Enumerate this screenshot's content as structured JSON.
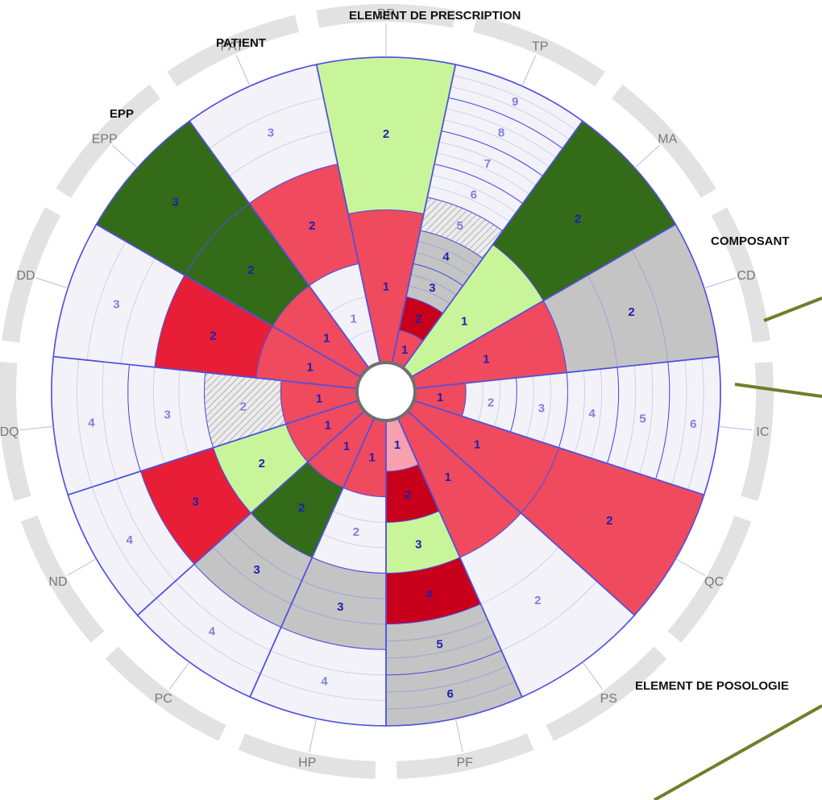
{
  "chart_data": {
    "type": "radial-stacked-segments",
    "title": "",
    "group_titles": [
      "ELEMENT DE PRESCRIPTION",
      "COMPOSANT",
      "ELEMENT DE POSOLOGIE",
      "PATIENT",
      "EPP"
    ],
    "colors": {
      "red": "#ef4a5e",
      "darkred": "#c8001c",
      "brightred": "#e81e36",
      "pink": "#f7a0ae",
      "lime": "#c9f59a",
      "darkgreen": "#336b19",
      "gray": "#c4c4c4",
      "empty": "#f2f2f8",
      "hatch": "#e6e6e6",
      "ring": "#e2e2e2",
      "line": "#5050e0",
      "label_dark": "#1f1fae",
      "label_light": "#8080e0",
      "axis_text": "#777777",
      "leader": "#6e7f2a"
    },
    "sectors": [
      {
        "code": "DP",
        "levels": [
          {
            "n": 1,
            "c": "red"
          },
          {
            "n": 2,
            "c": "lime"
          }
        ]
      },
      {
        "code": "TP",
        "levels": [
          {
            "n": 1,
            "c": "red"
          },
          {
            "n": 2,
            "c": "darkred"
          },
          {
            "n": 3,
            "c": "gray"
          },
          {
            "n": 4,
            "c": "gray"
          },
          {
            "n": 5,
            "c": "hatch"
          },
          {
            "n": 6,
            "c": "empty"
          },
          {
            "n": 7,
            "c": "empty"
          },
          {
            "n": 8,
            "c": "empty"
          },
          {
            "n": 9,
            "c": "empty"
          }
        ]
      },
      {
        "code": "MA",
        "levels": [
          {
            "n": 1,
            "c": "lime"
          },
          {
            "n": 2,
            "c": "darkgreen"
          }
        ]
      },
      {
        "code": "CD",
        "levels": [
          {
            "n": 1,
            "c": "red"
          },
          {
            "n": 2,
            "c": "gray"
          }
        ]
      },
      {
        "code": "IC",
        "levels": [
          {
            "n": 1,
            "c": "red"
          },
          {
            "n": 2,
            "c": "empty"
          },
          {
            "n": 3,
            "c": "empty"
          },
          {
            "n": 4,
            "c": "empty"
          },
          {
            "n": 5,
            "c": "empty"
          },
          {
            "n": 6,
            "c": "empty"
          }
        ]
      },
      {
        "code": "QC",
        "levels": [
          {
            "n": 1,
            "c": "red"
          },
          {
            "n": 2,
            "c": "red"
          }
        ]
      },
      {
        "code": "PS",
        "levels": [
          {
            "n": 1,
            "c": "red"
          },
          {
            "n": 2,
            "c": "empty"
          }
        ]
      },
      {
        "code": "PF",
        "levels": [
          {
            "n": 1,
            "c": "pink"
          },
          {
            "n": 2,
            "c": "darkred"
          },
          {
            "n": 3,
            "c": "lime"
          },
          {
            "n": 4,
            "c": "darkred"
          },
          {
            "n": 5,
            "c": "gray"
          },
          {
            "n": 6,
            "c": "gray"
          }
        ]
      },
      {
        "code": "HP",
        "levels": [
          {
            "n": 1,
            "c": "red"
          },
          {
            "n": 2,
            "c": "empty"
          },
          {
            "n": 3,
            "c": "gray"
          },
          {
            "n": 4,
            "c": "empty"
          }
        ]
      },
      {
        "code": "PC",
        "levels": [
          {
            "n": 1,
            "c": "red"
          },
          {
            "n": 2,
            "c": "darkgreen"
          },
          {
            "n": 3,
            "c": "gray"
          },
          {
            "n": 4,
            "c": "empty"
          }
        ]
      },
      {
        "code": "ND",
        "levels": [
          {
            "n": 1,
            "c": "red"
          },
          {
            "n": 2,
            "c": "lime"
          },
          {
            "n": 3,
            "c": "brightred"
          },
          {
            "n": 4,
            "c": "empty"
          }
        ]
      },
      {
        "code": "DQ",
        "levels": [
          {
            "n": 1,
            "c": "red"
          },
          {
            "n": 2,
            "c": "hatch"
          },
          {
            "n": 3,
            "c": "empty"
          },
          {
            "n": 4,
            "c": "empty"
          }
        ]
      },
      {
        "code": "DD",
        "levels": [
          {
            "n": 1,
            "c": "red"
          },
          {
            "n": 2,
            "c": "brightred"
          },
          {
            "n": 3,
            "c": "empty"
          }
        ]
      },
      {
        "code": "EPP",
        "levels": [
          {
            "n": 1,
            "c": "red"
          },
          {
            "n": 2,
            "c": "darkgreen"
          },
          {
            "n": 3,
            "c": "darkgreen"
          }
        ]
      },
      {
        "code": "PAT",
        "levels": [
          {
            "n": 1,
            "c": "empty"
          },
          {
            "n": 2,
            "c": "red"
          },
          {
            "n": 3,
            "c": "empty"
          }
        ]
      }
    ]
  }
}
